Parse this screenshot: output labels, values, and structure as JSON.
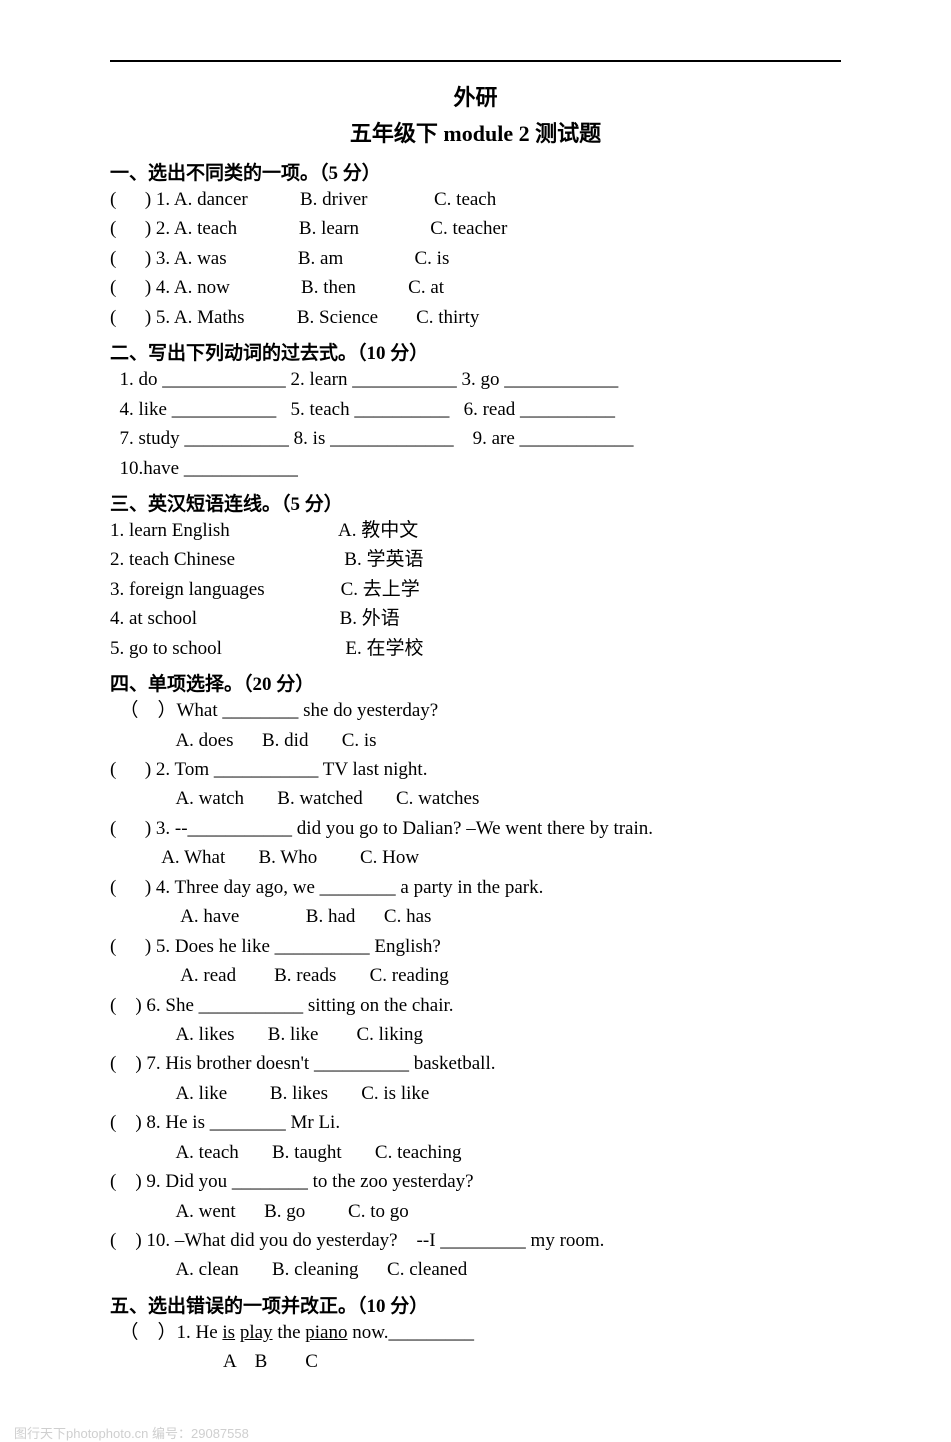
{
  "title": {
    "line1": "外研",
    "line2": "五年级下 module 2    测试题"
  },
  "section1": {
    "head": "一、选出不同类的一项。（5 分）",
    "rows": [
      "(      ) 1. A. dancer           B. driver              C. teach",
      "(      ) 2. A. teach             B. learn               C. teacher",
      "(      ) 3. A. was               B. am               C. is",
      "(      ) 4. A. now               B. then           C. at",
      "(      ) 5. A. Maths           B. Science        C. thirty"
    ]
  },
  "section2": {
    "head": "二、写出下列动词的过去式。（10 分）",
    "rows": [
      "  1. do _____________ 2. learn ___________ 3. go ____________",
      "  4. like ___________   5. teach __________   6. read __________",
      "  7. study ___________ 8. is _____________    9. are ____________",
      "  10.have ____________"
    ]
  },
  "section3": {
    "head": "三、英汉短语连线。（5 分）",
    "rows": [
      "1. learn English                       A. 教中文",
      "2. teach Chinese                       B. 学英语",
      "3. foreign languages                C. 去上学",
      "4. at school                              B. 外语",
      "5. go to school                          E. 在学校"
    ]
  },
  "section4": {
    "head": "四、单项选择。（20 分）",
    "rows": [
      "  （    ）What ________ she do yesterday?",
      "              A. does      B. did       C. is",
      "(      ) 2. Tom ___________ TV last night.",
      "              A. watch       B. watched       C. watches",
      "(      ) 3. --___________ did you go to Dalian? –We went there by train.",
      "           A. What       B. Who         C. How",
      "(      ) 4. Three day ago, we ________ a party in the park.",
      "               A. have              B. had      C. has",
      "(      ) 5. Does he like __________ English?",
      "               A. read        B. reads       C. reading",
      "(    ) 6. She ___________ sitting on the chair.",
      "              A. likes       B. like        C. liking",
      "(    ) 7. His brother doesn't __________ basketball.",
      "              A. like         B. likes       C. is like",
      "(    ) 8. He is ________ Mr Li.",
      "              A. teach       B. taught       C. teaching",
      "(    ) 9. Did you ________ to the zoo yesterday?",
      "              A. went      B. go         C. to go",
      "(    ) 10. –What did you do yesterday?    --I _________ my room.",
      "              A. clean       B. cleaning      C. cleaned"
    ]
  },
  "section5": {
    "head": "五、选出错误的一项并改正。（10 分）",
    "q1_prefix": "  （    ）1. He ",
    "q1_u1": "is",
    "q1_mid1": " ",
    "q1_u2": "play",
    "q1_mid2": " the ",
    "q1_u3": "piano",
    "q1_suffix": " now._________",
    "labels": "                        A    B        C"
  },
  "watermark": "图行天下photophoto.cn  编号：29087558"
}
